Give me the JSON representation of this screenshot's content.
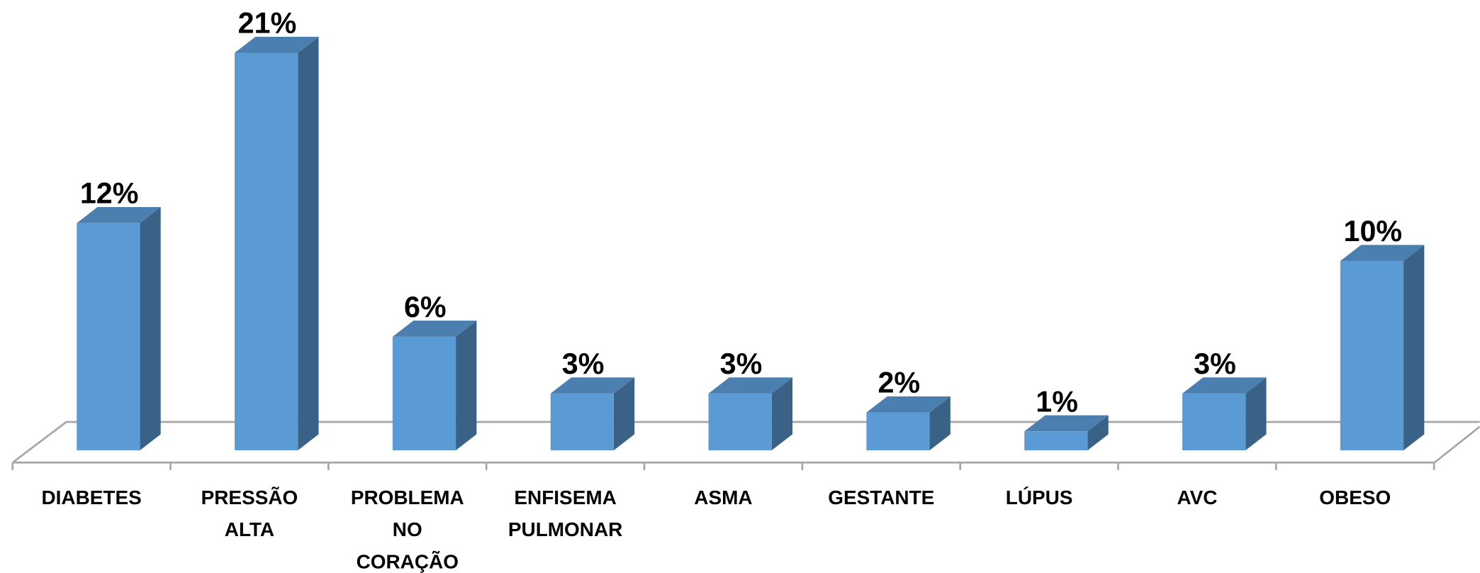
{
  "chart_data": {
    "type": "bar3d",
    "categories": [
      "DIABETES",
      "PRESSÃO ALTA",
      "PROBLEMA NO CORAÇÃO",
      "ENFISEMA PULMONAR",
      "ASMA",
      "GESTANTE",
      "LÚPUS",
      "AVC",
      "OBESO"
    ],
    "values": [
      12,
      21,
      6,
      3,
      3,
      2,
      1,
      3,
      10
    ],
    "value_labels": [
      "12%",
      "21%",
      "6%",
      "3%",
      "3%",
      "2%",
      "1%",
      "3%",
      "10%"
    ],
    "color": "#5b9bd5",
    "ylim": [
      0,
      22
    ]
  }
}
